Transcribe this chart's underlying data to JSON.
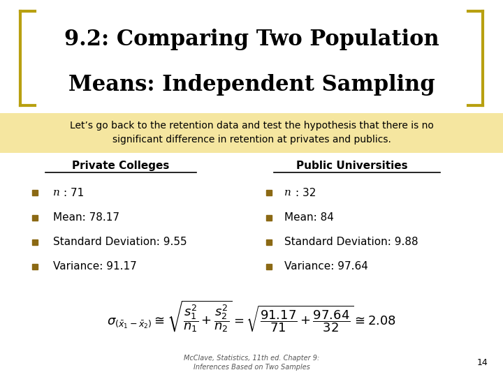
{
  "title_line1": "9.2: Comparing Two Population",
  "title_line2": "Means: Independent Sampling",
  "subtitle": "Let’s go back to the retention data and test the hypothesis that there is no\nsignificant difference in retention at privates and publics.",
  "subtitle_bg": "#F5E6A0",
  "bg_color": "#FFFFFF",
  "title_color": "#000000",
  "bracket_color": "#B8A010",
  "col1_header": "Private Colleges",
  "col2_header": "Public Universities",
  "col1_items": [
    "n: 71",
    "Mean: 78.17",
    "Standard Deviation: 9.55",
    "Variance: 91.17"
  ],
  "col2_items": [
    "n: 32",
    "Mean: 84",
    "Standard Deviation: 9.88",
    "Variance: 97.64"
  ],
  "bullet_color": "#8B6914",
  "formula_note": "McClave, Statistics, 11th ed. Chapter 9:\nInferences Based on Two Samples",
  "page_num": "14"
}
